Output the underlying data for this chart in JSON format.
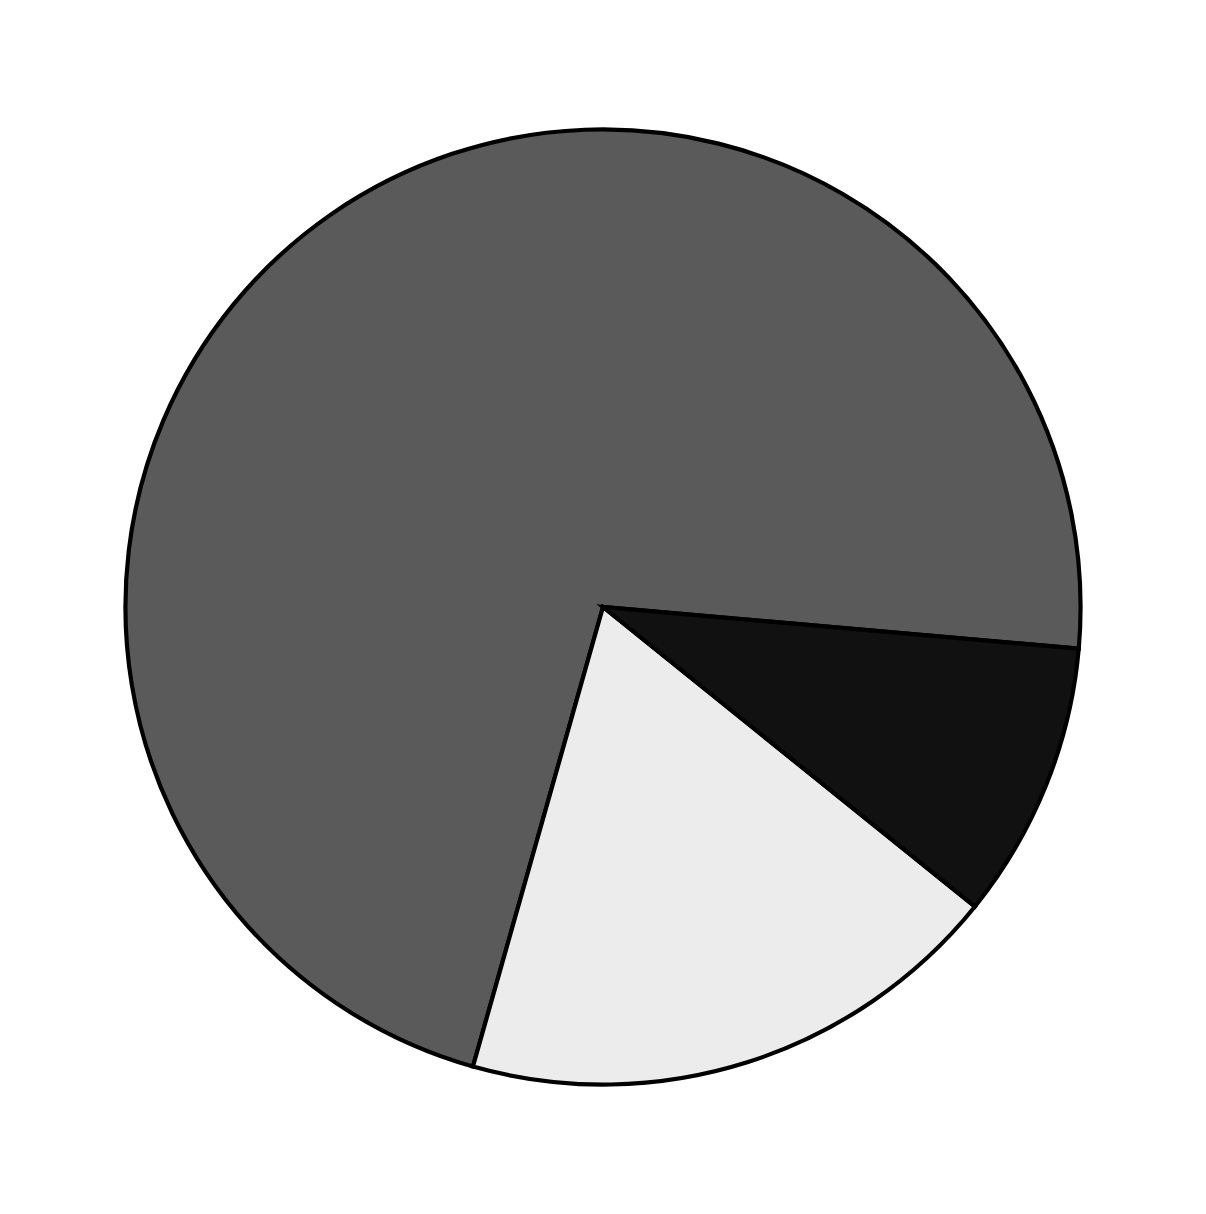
{
  "chart_data": {
    "type": "pie",
    "categories": [
      null,
      null,
      null
    ],
    "values": [
      72,
      18.6,
      9.4
    ],
    "colors": [
      "#5a5a5a",
      "#ececec",
      "#111111"
    ]
  }
}
